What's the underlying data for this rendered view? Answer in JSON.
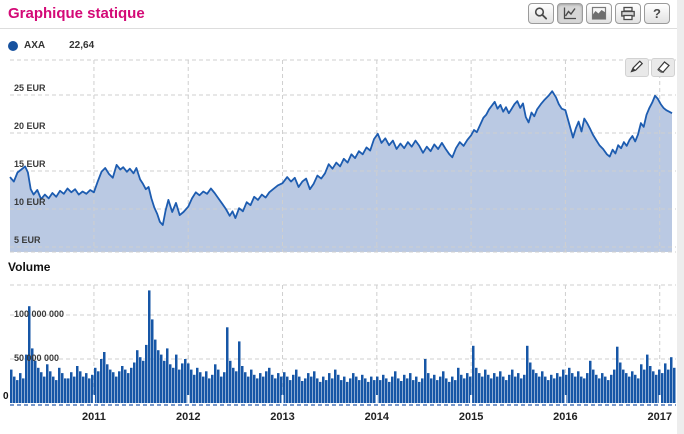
{
  "header": {
    "title": "Graphique statique"
  },
  "toolbar": {
    "buttons": [
      {
        "id": "zoom",
        "icon": "magnifier-icon"
      },
      {
        "id": "line-chart",
        "icon": "line-chart-icon",
        "active": true
      },
      {
        "id": "area-chart",
        "icon": "area-chart-icon"
      },
      {
        "id": "print",
        "icon": "printer-icon"
      },
      {
        "id": "help",
        "icon": "question-mark-icon",
        "glyph": "?"
      }
    ]
  },
  "legend": {
    "series_name": "AXA",
    "last_value": "22,64",
    "dot_color": "#17519e"
  },
  "annotation_tools": [
    {
      "id": "draw",
      "icon": "pencil-icon"
    },
    {
      "id": "erase",
      "icon": "eraser-icon"
    }
  ],
  "colors": {
    "title": "#d40a77",
    "price_line": "#1d5cb0",
    "price_fill": "#bac9e3",
    "volume_bar": "#1656a6",
    "gridline": "#cfcfcf",
    "volume_axis": "#2a5caa"
  },
  "chart_data": [
    {
      "type": "area",
      "series_name": "AXA",
      "unit": "EUR",
      "last_value": 22.64,
      "x_range": [
        2010.11,
        2017.14
      ],
      "x_ticks": [
        2011,
        2012,
        2013,
        2014,
        2015,
        2016,
        2017
      ],
      "y_ticks": [
        5,
        10,
        15,
        20,
        25
      ],
      "y_tick_labels": [
        "5 EUR",
        "10 EUR",
        "15 EUR",
        "20 EUR",
        "25 EUR"
      ],
      "grid": "dashed",
      "points": [
        [
          2010.11,
          14.2
        ],
        [
          2010.15,
          13.6
        ],
        [
          2010.19,
          14.8
        ],
        [
          2010.23,
          15.2
        ],
        [
          2010.27,
          15.6
        ],
        [
          2010.3,
          14.8
        ],
        [
          2010.33,
          12.6
        ],
        [
          2010.36,
          11.9
        ],
        [
          2010.4,
          12.5
        ],
        [
          2010.44,
          11.3
        ],
        [
          2010.48,
          11.9
        ],
        [
          2010.52,
          11.4
        ],
        [
          2010.56,
          12.1
        ],
        [
          2010.6,
          11.6
        ],
        [
          2010.64,
          12.4
        ],
        [
          2010.68,
          12.0
        ],
        [
          2010.72,
          12.7
        ],
        [
          2010.76,
          12.2
        ],
        [
          2010.8,
          12.6
        ],
        [
          2010.84,
          11.9
        ],
        [
          2010.88,
          12.3
        ],
        [
          2010.92,
          12.0
        ],
        [
          2010.96,
          12.5
        ],
        [
          2011.0,
          12.2
        ],
        [
          2011.04,
          13.6
        ],
        [
          2011.08,
          14.9
        ],
        [
          2011.12,
          15.4
        ],
        [
          2011.16,
          14.6
        ],
        [
          2011.2,
          14.1
        ],
        [
          2011.24,
          15.8
        ],
        [
          2011.28,
          15.2
        ],
        [
          2011.31,
          15.5
        ],
        [
          2011.35,
          14.9
        ],
        [
          2011.38,
          15.3
        ],
        [
          2011.42,
          14.7
        ],
        [
          2011.45,
          15.4
        ],
        [
          2011.49,
          13.9
        ],
        [
          2011.52,
          13.3
        ],
        [
          2011.55,
          12.6
        ],
        [
          2011.58,
          12.9
        ],
        [
          2011.61,
          11.4
        ],
        [
          2011.64,
          10.2
        ],
        [
          2011.67,
          9.4
        ],
        [
          2011.7,
          8.3
        ],
        [
          2011.73,
          7.9
        ],
        [
          2011.76,
          9.8
        ],
        [
          2011.79,
          11.2
        ],
        [
          2011.83,
          9.6
        ],
        [
          2011.87,
          10.8
        ],
        [
          2011.91,
          9.2
        ],
        [
          2011.95,
          9.6
        ],
        [
          2012.0,
          10.3
        ],
        [
          2012.04,
          11.4
        ],
        [
          2012.08,
          12.2
        ],
        [
          2012.12,
          11.8
        ],
        [
          2012.16,
          12.3
        ],
        [
          2012.2,
          12.0
        ],
        [
          2012.24,
          12.7
        ],
        [
          2012.28,
          12.1
        ],
        [
          2012.32,
          11.4
        ],
        [
          2012.36,
          10.7
        ],
        [
          2012.4,
          10.0
        ],
        [
          2012.44,
          9.1
        ],
        [
          2012.47,
          9.7
        ],
        [
          2012.5,
          8.8
        ],
        [
          2012.54,
          10.1
        ],
        [
          2012.58,
          9.7
        ],
        [
          2012.62,
          10.9
        ],
        [
          2012.66,
          10.5
        ],
        [
          2012.7,
          11.6
        ],
        [
          2012.74,
          11.2
        ],
        [
          2012.78,
          11.9
        ],
        [
          2012.82,
          11.5
        ],
        [
          2012.86,
          12.2
        ],
        [
          2012.9,
          12.6
        ],
        [
          2012.95,
          13.1
        ],
        [
          2013.0,
          13.4
        ],
        [
          2013.05,
          14.2
        ],
        [
          2013.09,
          13.6
        ],
        [
          2013.13,
          14.1
        ],
        [
          2013.17,
          12.9
        ],
        [
          2013.21,
          13.6
        ],
        [
          2013.25,
          14.0
        ],
        [
          2013.29,
          12.6
        ],
        [
          2013.33,
          13.3
        ],
        [
          2013.37,
          14.4
        ],
        [
          2013.41,
          14.0
        ],
        [
          2013.45,
          14.7
        ],
        [
          2013.49,
          15.9
        ],
        [
          2013.53,
          15.3
        ],
        [
          2013.57,
          16.1
        ],
        [
          2013.61,
          15.6
        ],
        [
          2013.65,
          16.6
        ],
        [
          2013.69,
          16.1
        ],
        [
          2013.73,
          17.2
        ],
        [
          2013.77,
          16.7
        ],
        [
          2013.81,
          17.6
        ],
        [
          2013.85,
          17.2
        ],
        [
          2013.89,
          18.1
        ],
        [
          2013.93,
          17.7
        ],
        [
          2013.97,
          19.2
        ],
        [
          2014.01,
          19.9
        ],
        [
          2014.05,
          18.7
        ],
        [
          2014.09,
          19.3
        ],
        [
          2014.13,
          18.4
        ],
        [
          2014.17,
          19.0
        ],
        [
          2014.21,
          17.9
        ],
        [
          2014.25,
          18.6
        ],
        [
          2014.29,
          18.0
        ],
        [
          2014.33,
          18.8
        ],
        [
          2014.37,
          18.2
        ],
        [
          2014.41,
          19.0
        ],
        [
          2014.45,
          18.3
        ],
        [
          2014.49,
          17.4
        ],
        [
          2014.53,
          18.2
        ],
        [
          2014.57,
          17.6
        ],
        [
          2014.61,
          18.5
        ],
        [
          2014.65,
          17.9
        ],
        [
          2014.69,
          18.7
        ],
        [
          2014.73,
          17.9
        ],
        [
          2014.77,
          17.2
        ],
        [
          2014.8,
          16.8
        ],
        [
          2014.84,
          18.0
        ],
        [
          2014.88,
          18.8
        ],
        [
          2014.92,
          18.3
        ],
        [
          2014.96,
          19.1
        ],
        [
          2015.0,
          19.7
        ],
        [
          2015.03,
          20.4
        ],
        [
          2015.06,
          20.1
        ],
        [
          2015.1,
          21.2
        ],
        [
          2015.13,
          22.0
        ],
        [
          2015.16,
          22.4
        ],
        [
          2015.19,
          23.1
        ],
        [
          2015.22,
          23.6
        ],
        [
          2015.25,
          24.1
        ],
        [
          2015.28,
          23.2
        ],
        [
          2015.31,
          23.7
        ],
        [
          2015.34,
          22.8
        ],
        [
          2015.37,
          23.4
        ],
        [
          2015.4,
          22.6
        ],
        [
          2015.43,
          23.2
        ],
        [
          2015.46,
          23.8
        ],
        [
          2015.49,
          24.2
        ],
        [
          2015.52,
          23.3
        ],
        [
          2015.55,
          23.9
        ],
        [
          2015.58,
          22.1
        ],
        [
          2015.61,
          21.4
        ],
        [
          2015.64,
          22.7
        ],
        [
          2015.67,
          22.2
        ],
        [
          2015.7,
          23.1
        ],
        [
          2015.74,
          23.8
        ],
        [
          2015.78,
          24.4
        ],
        [
          2015.82,
          24.9
        ],
        [
          2015.86,
          25.5
        ],
        [
          2015.9,
          24.7
        ],
        [
          2015.93,
          23.8
        ],
        [
          2015.96,
          23.2
        ],
        [
          2016.0,
          23.0
        ],
        [
          2016.04,
          21.2
        ],
        [
          2016.08,
          19.4
        ],
        [
          2016.11,
          20.6
        ],
        [
          2016.14,
          21.5
        ],
        [
          2016.17,
          20.2
        ],
        [
          2016.2,
          21.9
        ],
        [
          2016.23,
          21.3
        ],
        [
          2016.26,
          20.6
        ],
        [
          2016.29,
          19.8
        ],
        [
          2016.32,
          19.2
        ],
        [
          2016.36,
          18.4
        ],
        [
          2016.4,
          17.9
        ],
        [
          2016.44,
          17.2
        ],
        [
          2016.47,
          16.9
        ],
        [
          2016.5,
          17.8
        ],
        [
          2016.53,
          17.3
        ],
        [
          2016.56,
          18.4
        ],
        [
          2016.59,
          18.0
        ],
        [
          2016.62,
          18.8
        ],
        [
          2016.65,
          18.3
        ],
        [
          2016.68,
          19.1
        ],
        [
          2016.71,
          19.6
        ],
        [
          2016.74,
          18.9
        ],
        [
          2016.77,
          19.8
        ],
        [
          2016.8,
          21.3
        ],
        [
          2016.83,
          20.8
        ],
        [
          2016.86,
          22.4
        ],
        [
          2016.89,
          23.3
        ],
        [
          2016.92,
          24.0
        ],
        [
          2016.95,
          24.9
        ],
        [
          2016.98,
          24.5
        ],
        [
          2017.01,
          23.8
        ],
        [
          2017.04,
          23.3
        ],
        [
          2017.07,
          23.0
        ],
        [
          2017.1,
          22.8
        ],
        [
          2017.13,
          22.6
        ]
      ]
    },
    {
      "type": "bar",
      "title": "Volume",
      "y_ticks_millions": [
        50,
        100
      ],
      "y_tick_labels": [
        "50 000 000",
        "100 000 000"
      ],
      "zero_label": "0",
      "x_start": 2010.11,
      "x_step": 0.0318,
      "values_millions": [
        38,
        30,
        26,
        34,
        28,
        55,
        110,
        62,
        48,
        40,
        35,
        30,
        44,
        36,
        30,
        26,
        40,
        34,
        28,
        28,
        35,
        30,
        42,
        36,
        30,
        34,
        28,
        32,
        40,
        36,
        50,
        58,
        44,
        38,
        35,
        30,
        36,
        42,
        38,
        34,
        40,
        46,
        60,
        52,
        48,
        66,
        128,
        95,
        72,
        60,
        55,
        48,
        62,
        44,
        40,
        55,
        38,
        45,
        50,
        45,
        38,
        32,
        40,
        35,
        30,
        36,
        28,
        32,
        44,
        38,
        30,
        35,
        86,
        48,
        40,
        36,
        70,
        42,
        35,
        30,
        38,
        32,
        28,
        34,
        30,
        36,
        40,
        32,
        28,
        34,
        30,
        35,
        30,
        26,
        32,
        38,
        30,
        25,
        28,
        34,
        30,
        36,
        28,
        24,
        30,
        26,
        34,
        28,
        38,
        32,
        26,
        30,
        24,
        28,
        34,
        30,
        26,
        32,
        28,
        24,
        30,
        26,
        30,
        26,
        32,
        28,
        24,
        30,
        36,
        28,
        25,
        32,
        28,
        34,
        26,
        30,
        24,
        28,
        50,
        34,
        28,
        32,
        26,
        30,
        36,
        28,
        24,
        30,
        26,
        40,
        32,
        28,
        34,
        30,
        65,
        40,
        34,
        30,
        38,
        32,
        28,
        34,
        30,
        36,
        30,
        26,
        32,
        38,
        30,
        34,
        28,
        32,
        65,
        46,
        38,
        34,
        30,
        36,
        30,
        26,
        32,
        28,
        34,
        30,
        38,
        32,
        40,
        34,
        30,
        36,
        30,
        28,
        34,
        48,
        38,
        32,
        28,
        34,
        30,
        26,
        32,
        38,
        64,
        46,
        38,
        34,
        30,
        36,
        32,
        28,
        44,
        38,
        55,
        42,
        36,
        32,
        38,
        34,
        45,
        38,
        52,
        40
      ]
    }
  ]
}
